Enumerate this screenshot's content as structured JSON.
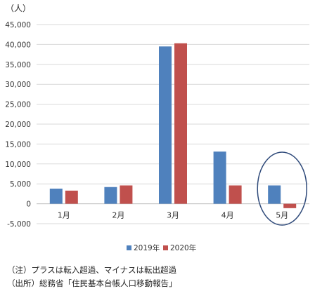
{
  "chart_data": {
    "type": "bar",
    "unit_label": "（人）",
    "categories": [
      "1月",
      "2月",
      "3月",
      "4月",
      "5月"
    ],
    "series": [
      {
        "name": "2019年",
        "color": "#4f81bd",
        "values": [
          3800,
          4200,
          39500,
          13100,
          4600
        ]
      },
      {
        "name": "2020年",
        "color": "#c0504d",
        "values": [
          3300,
          4600,
          40300,
          4600,
          -1100
        ]
      }
    ],
    "ylim": [
      -5000,
      45000
    ],
    "yticks": [
      -5000,
      0,
      5000,
      10000,
      15000,
      20000,
      25000,
      30000,
      35000,
      40000,
      45000
    ],
    "ytick_labels": [
      "-5,000",
      "0",
      "5,000",
      "10,000",
      "15,000",
      "20,000",
      "25,000",
      "30,000",
      "35,000",
      "40,000",
      "45,000"
    ],
    "grid": true,
    "legend_position": "bottom",
    "highlight_category": "5月",
    "highlight_color": "#2f4a7a"
  },
  "notes": [
    "（注）プラスは転入超過、マイナスは転出超過",
    "（出所）総務省「住民基本台帳人口移動報告」"
  ]
}
